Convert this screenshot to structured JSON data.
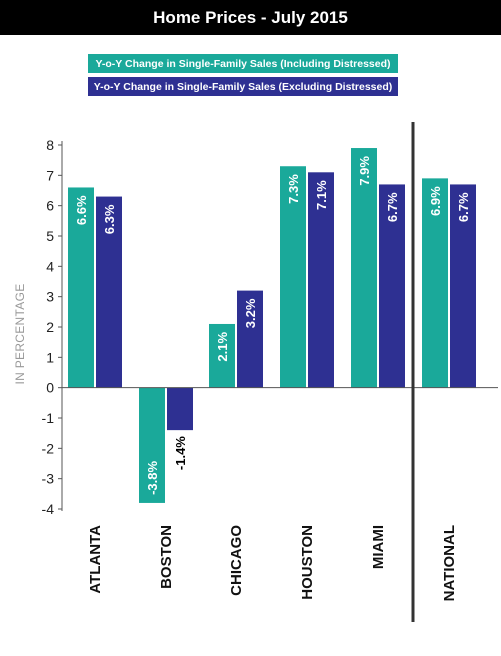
{
  "title": "Home Prices - July 2015",
  "colors": {
    "including": "#1aa99a",
    "excluding": "#2e3092",
    "axis": "#555555",
    "divider": "#333333"
  },
  "chart_data": {
    "type": "bar",
    "title": "Home Prices - July 2015",
    "ylabel": "IN PERCENTAGE",
    "xlabel": "",
    "ylim": [
      -4,
      8
    ],
    "yticks": [
      "8",
      "7",
      "6",
      "5",
      "4",
      "3",
      "2",
      "1",
      "0",
      "-1",
      "-2",
      "-3",
      "-4"
    ],
    "categories": [
      "ATLANTA",
      "BOSTON",
      "CHICAGO",
      "HOUSTON",
      "MIAMI",
      "NATIONAL"
    ],
    "legend_position": "top",
    "series": [
      {
        "name": "Y-o-Y Change in Single-Family Sales (Including Distressed)",
        "values": [
          6.6,
          -3.8,
          2.1,
          7.3,
          7.9,
          6.9
        ],
        "labels": [
          "6.6%",
          "-3.8%",
          "2.1%",
          "7.3%",
          "7.9%",
          "6.9%"
        ]
      },
      {
        "name": "Y-o-Y Change in Single-Family Sales (Excluding Distressed)",
        "values": [
          6.3,
          -1.4,
          3.2,
          7.1,
          6.7,
          6.7
        ],
        "labels": [
          "6.3%",
          "-1.4%",
          "3.2%",
          "7.1%",
          "6.7%",
          "6.7%"
        ]
      }
    ]
  }
}
